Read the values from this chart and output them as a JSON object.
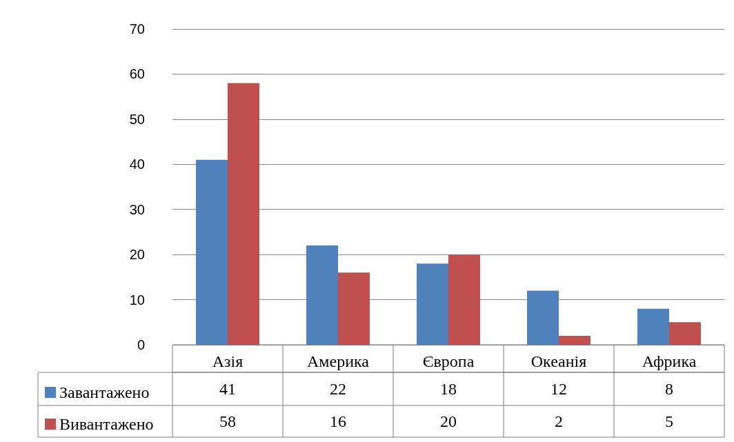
{
  "chart_data": {
    "type": "bar",
    "categories": [
      "Азія",
      "Америка",
      "Європа",
      "Океанія",
      "Африка"
    ],
    "series": [
      {
        "name": "Завантажено",
        "color": "#4f81bd",
        "values": [
          41,
          22,
          18,
          12,
          8
        ]
      },
      {
        "name": "Вивантажено",
        "color": "#c0504d",
        "values": [
          58,
          16,
          20,
          2,
          5
        ]
      }
    ],
    "ylim": [
      0,
      70
    ],
    "yticks": [
      0,
      10,
      20,
      30,
      40,
      50,
      60,
      70
    ],
    "grid": "y",
    "legend": "bottom left",
    "data_labels": true
  }
}
